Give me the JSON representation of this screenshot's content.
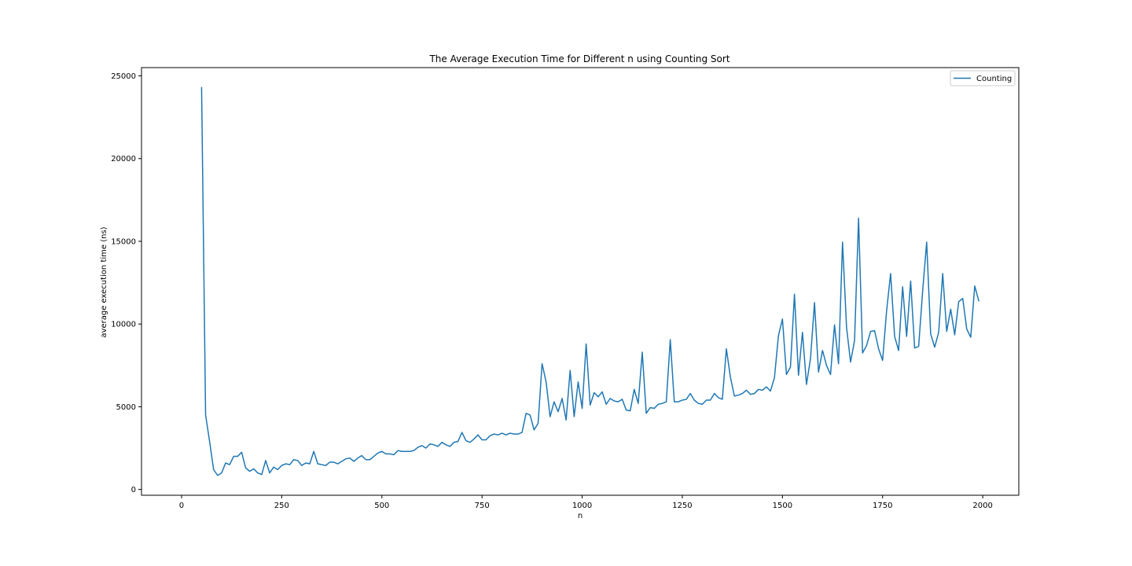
{
  "chart_data": {
    "type": "line",
    "title": "The Average Execution Time for Different n using Counting Sort",
    "xlabel": "n",
    "ylabel": "average execution time (ns)",
    "xlim": [
      -100,
      2090
    ],
    "ylim": [
      -350,
      25500
    ],
    "xticks": [
      0,
      250,
      500,
      750,
      1000,
      1250,
      1500,
      1750,
      2000
    ],
    "xtick_labels": [
      "0",
      "250",
      "500",
      "750",
      "1000",
      "1250",
      "1500",
      "1750",
      "2000"
    ],
    "yticks": [
      0,
      5000,
      10000,
      15000,
      20000,
      25000
    ],
    "ytick_labels": [
      "0",
      "5000",
      "10000",
      "15000",
      "20000",
      "25000"
    ],
    "legend": {
      "position": "top-right"
    },
    "colors": {
      "series": "#1f77b4",
      "axes": "#000000",
      "background": "#ffffff"
    },
    "series": [
      {
        "name": "Counting",
        "x": [
          50,
          60,
          70,
          80,
          90,
          100,
          110,
          120,
          130,
          140,
          150,
          160,
          170,
          180,
          190,
          200,
          210,
          220,
          230,
          240,
          250,
          260,
          270,
          280,
          290,
          300,
          310,
          320,
          330,
          340,
          350,
          360,
          370,
          380,
          390,
          400,
          410,
          420,
          430,
          440,
          450,
          460,
          470,
          480,
          490,
          500,
          510,
          520,
          530,
          540,
          550,
          560,
          570,
          580,
          590,
          600,
          610,
          620,
          630,
          640,
          650,
          660,
          670,
          680,
          690,
          700,
          710,
          720,
          730,
          740,
          750,
          760,
          770,
          780,
          790,
          800,
          810,
          820,
          830,
          840,
          850,
          860,
          870,
          880,
          890,
          900,
          910,
          920,
          930,
          940,
          950,
          960,
          970,
          980,
          990,
          1000,
          1010,
          1020,
          1030,
          1040,
          1050,
          1060,
          1070,
          1080,
          1090,
          1100,
          1110,
          1120,
          1130,
          1140,
          1150,
          1160,
          1170,
          1180,
          1190,
          1200,
          1210,
          1220,
          1230,
          1240,
          1250,
          1260,
          1270,
          1280,
          1290,
          1300,
          1310,
          1320,
          1330,
          1340,
          1350,
          1360,
          1370,
          1380,
          1390,
          1400,
          1410,
          1420,
          1430,
          1440,
          1450,
          1460,
          1470,
          1480,
          1490,
          1500,
          1510,
          1520,
          1530,
          1540,
          1550,
          1560,
          1570,
          1580,
          1590,
          1600,
          1610,
          1620,
          1630,
          1640,
          1650,
          1660,
          1670,
          1680,
          1690,
          1700,
          1710,
          1720,
          1730,
          1740,
          1750,
          1760,
          1770,
          1780,
          1790,
          1800,
          1810,
          1820,
          1830,
          1840,
          1850,
          1860,
          1870,
          1880,
          1890,
          1900,
          1910,
          1920,
          1930,
          1940,
          1950,
          1960,
          1970,
          1980,
          1990
        ],
        "values": [
          24300,
          4500,
          2900,
          1200,
          850,
          1000,
          1600,
          1500,
          2000,
          2000,
          2250,
          1300,
          1100,
          1250,
          1000,
          900,
          1750,
          1000,
          1350,
          1200,
          1450,
          1550,
          1500,
          1800,
          1750,
          1450,
          1600,
          1550,
          2300,
          1550,
          1500,
          1450,
          1650,
          1650,
          1550,
          1700,
          1850,
          1900,
          1700,
          1900,
          2050,
          1800,
          1800,
          2000,
          2200,
          2300,
          2150,
          2150,
          2100,
          2350,
          2300,
          2300,
          2300,
          2350,
          2550,
          2650,
          2500,
          2750,
          2700,
          2600,
          2850,
          2700,
          2600,
          2850,
          2900,
          3450,
          2950,
          2850,
          3050,
          3300,
          3000,
          3000,
          3250,
          3350,
          3300,
          3400,
          3300,
          3400,
          3350,
          3350,
          3450,
          4600,
          4500,
          3600,
          4000,
          7600,
          6500,
          4400,
          5300,
          4700,
          5500,
          4200,
          7200,
          4400,
          6500,
          4900,
          8800,
          5100,
          5850,
          5600,
          5900,
          5150,
          5500,
          5350,
          5300,
          5450,
          4800,
          4750,
          6050,
          5200,
          8300,
          4600,
          4950,
          4900,
          5150,
          5200,
          5300,
          9050,
          5300,
          5300,
          5400,
          5450,
          5800,
          5400,
          5200,
          5150,
          5400,
          5400,
          5800,
          5550,
          5450,
          8500,
          6800,
          5650,
          5700,
          5800,
          6000,
          5750,
          5800,
          6050,
          6000,
          6200,
          5950,
          6750,
          9300,
          10300,
          6950,
          7400,
          11800,
          6900,
          9500,
          6350,
          7900,
          11300,
          7100,
          8400,
          7500,
          6950,
          9950,
          7600,
          14950,
          9800,
          7700,
          9000,
          16400,
          8250,
          8700,
          9550,
          9600,
          8500,
          7800,
          10800,
          13050,
          9250,
          8400,
          12250,
          9250,
          12600,
          8550,
          8650,
          12000,
          14950,
          9400,
          8600,
          9500,
          13050,
          9550,
          10900,
          9350,
          11350,
          11550,
          9700,
          9200,
          12300,
          11400
        ]
      }
    ]
  }
}
